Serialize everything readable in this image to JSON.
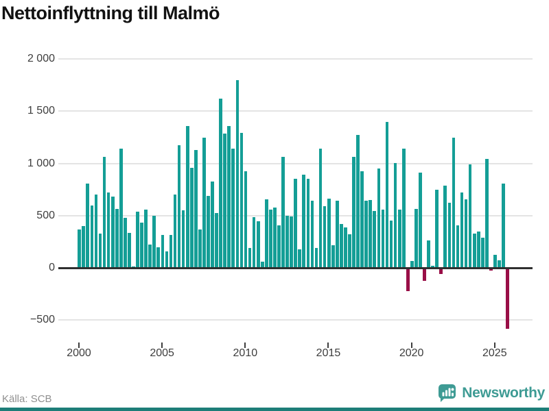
{
  "title": "Nettoinflyttning till Malmö",
  "source": "Källa: SCB",
  "brand": {
    "name": "Newsworthy"
  },
  "colors": {
    "positive_bar": "#149e96",
    "negative_bar": "#990f47",
    "gridline": "#e4e4e4",
    "zero_axis": "#2f2f2f",
    "brand_teal": "#3e9b94",
    "bottom_border": "#1d7d78",
    "axis_text": "#3d3d3d",
    "source_text": "#8f8f8f"
  },
  "chart_data": {
    "type": "bar",
    "title": "Nettoinflyttning till Malmö",
    "xlabel": "",
    "ylabel": "",
    "ylim": [
      -700,
      2050
    ],
    "grid": "horizontal",
    "yticks": [
      2000,
      1500,
      1000,
      500,
      0,
      -500
    ],
    "ytick_labels": [
      "2 000",
      "1 500",
      "1 000",
      "500",
      "0",
      "−500"
    ],
    "xtick_labels": [
      "2000",
      "2005",
      "2010",
      "2015",
      "2020",
      "2025"
    ],
    "xtick_years": [
      2000,
      2005,
      2010,
      2015,
      2020,
      2025
    ],
    "x": [
      "2000K1",
      "2000K2",
      "2000K3",
      "2000K4",
      "2001K1",
      "2001K2",
      "2001K3",
      "2001K4",
      "2002K1",
      "2002K2",
      "2002K3",
      "2002K4",
      "2003K1",
      "2003K2",
      "2003K3",
      "2003K4",
      "2004K1",
      "2004K2",
      "2004K3",
      "2004K4",
      "2005K1",
      "2005K2",
      "2005K3",
      "2005K4",
      "2006K1",
      "2006K2",
      "2006K3",
      "2006K4",
      "2007K1",
      "2007K2",
      "2007K3",
      "2007K4",
      "2008K1",
      "2008K2",
      "2008K3",
      "2008K4",
      "2009K1",
      "2009K2",
      "2009K3",
      "2009K4",
      "2010K1",
      "2010K2",
      "2010K3",
      "2010K4",
      "2011K1",
      "2011K2",
      "2011K3",
      "2011K4",
      "2012K1",
      "2012K2",
      "2012K3",
      "2012K4",
      "2013K1",
      "2013K2",
      "2013K3",
      "2013K4",
      "2014K1",
      "2014K2",
      "2014K3",
      "2014K4",
      "2015K1",
      "2015K2",
      "2015K3",
      "2015K4",
      "2016K1",
      "2016K2",
      "2016K3",
      "2016K4",
      "2017K1",
      "2017K2",
      "2017K3",
      "2017K4",
      "2018K1",
      "2018K2",
      "2018K3",
      "2018K4",
      "2019K1",
      "2019K2",
      "2019K3",
      "2019K4",
      "2020K1",
      "2020K2",
      "2020K3",
      "2020K4",
      "2021K1",
      "2021K2",
      "2021K3",
      "2021K4",
      "2022K1",
      "2022K2",
      "2022K3",
      "2022K4",
      "2023K1",
      "2023K2",
      "2023K3",
      "2023K4",
      "2024K1",
      "2024K2",
      "2024K3",
      "2024K4",
      "2025K1",
      "2025K2",
      "2025K3",
      "2025K4"
    ],
    "values": [
      370,
      400,
      810,
      600,
      705,
      330,
      1060,
      720,
      680,
      565,
      1140,
      480,
      335,
      10,
      540,
      430,
      560,
      225,
      500,
      200,
      315,
      160,
      315,
      700,
      1175,
      550,
      1355,
      955,
      1130,
      365,
      1245,
      690,
      830,
      525,
      1620,
      1285,
      1355,
      1145,
      1800,
      1290,
      925,
      190,
      485,
      445,
      60,
      655,
      555,
      580,
      410,
      1060,
      500,
      490,
      850,
      180,
      895,
      855,
      640,
      190,
      1140,
      590,
      665,
      215,
      645,
      420,
      390,
      320,
      1060,
      1275,
      925,
      640,
      650,
      545,
      950,
      555,
      1395,
      455,
      1005,
      560,
      1140,
      -215,
      65,
      565,
      915,
      -115,
      265,
      20,
      750,
      -55,
      785,
      625,
      1250,
      405,
      725,
      655,
      990,
      325,
      345,
      290,
      1045,
      -20,
      125,
      70,
      805,
      -580
    ]
  }
}
